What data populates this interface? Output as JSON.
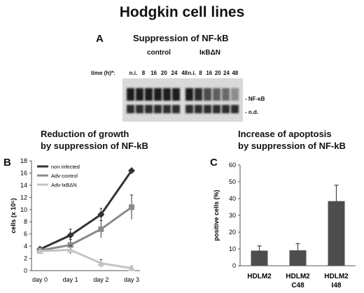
{
  "title": "Hodgkin cell lines",
  "panel_a": {
    "letter": "A",
    "heading": "Suppression of NF-kB",
    "group_control": "control",
    "group_treated": "IκBΔN",
    "time_label": "time (h)*:",
    "lanes_control": [
      "n.i.",
      "8",
      "16",
      "20",
      "24",
      "48"
    ],
    "lanes_treated": [
      "n.i.",
      "8",
      "16",
      "20",
      "24",
      "48"
    ],
    "band_labels": [
      "- NF-κB",
      "- n.d."
    ]
  },
  "panel_b": {
    "letter": "B",
    "heading_line1": "Reduction of growth",
    "heading_line2": "by suppression of NF-kB"
  },
  "panel_c": {
    "letter": "C",
    "heading_line1": "Increase of apoptosis",
    "heading_line2": "by suppression of NF-kB"
  },
  "chart_data": [
    {
      "type": "line",
      "ylabel": "cells (x 10⁵)",
      "xlabel": "",
      "categories": [
        "day 0",
        "day 1",
        "day 2",
        "day 3"
      ],
      "ylim": [
        0,
        18
      ],
      "yticks": [
        0,
        2,
        4,
        6,
        8,
        10,
        12,
        14,
        16,
        18
      ],
      "legend_position": "top-left",
      "series": [
        {
          "name": "non infected",
          "color": "#333333",
          "marker": "diamond",
          "values": [
            3.5,
            5.8,
            9.2,
            16.4
          ],
          "errors": [
            0.4,
            1.0,
            1.0,
            0
          ]
        },
        {
          "name": "Adv-control",
          "color": "#8a8a8a",
          "marker": "square",
          "values": [
            3.3,
            4.2,
            6.8,
            10.4
          ],
          "errors": [
            0.4,
            0.9,
            1.4,
            2.0
          ]
        },
        {
          "name": "Adv-IκBΔN",
          "color": "#c4c4c4",
          "marker": "triangle",
          "values": [
            3.2,
            3.4,
            1.2,
            0.4
          ],
          "errors": [
            0.3,
            0.7,
            0.6,
            0.3
          ]
        }
      ]
    },
    {
      "type": "bar",
      "ylabel": "positive cells (%)",
      "xlabel": "",
      "categories": [
        "HDLM2",
        "HDLM2\nC48",
        "HDLM2\nI48"
      ],
      "values": [
        9,
        9.2,
        38.5
      ],
      "errors": [
        2.8,
        4.0,
        9.5
      ],
      "ylim": [
        0,
        60
      ],
      "yticks": [
        0,
        10,
        20,
        30,
        40,
        50,
        60
      ],
      "bar_color": "#4d4d4d"
    }
  ]
}
